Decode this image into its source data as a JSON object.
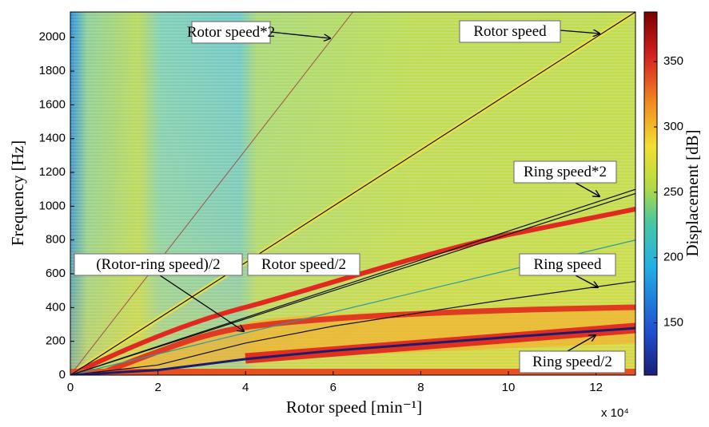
{
  "chart_data": {
    "type": "line",
    "x_label": "Rotor speed [min⁻¹]",
    "x_scale_label": "x 10⁴",
    "y_label": "Frequency [Hz]",
    "xlim": [
      0,
      12.9
    ],
    "xticks": [
      0,
      2,
      4,
      6,
      8,
      10,
      12
    ],
    "ylim": [
      0,
      2150
    ],
    "yticks": [
      0,
      200,
      400,
      600,
      800,
      1000,
      1200,
      1400,
      1600,
      1800,
      2000
    ],
    "colorbar": {
      "label": "Displacement [dB]",
      "clim": [
        110,
        388
      ],
      "ticks": [
        150,
        200,
        250,
        300,
        350
      ]
    },
    "series": [
      {
        "name": "Rotor speed*2",
        "color": "#a0524a",
        "x": [
          0,
          6.45
        ],
        "values": [
          0,
          2150
        ]
      },
      {
        "name": "Rotor speed",
        "color": "#111111",
        "x": [
          0,
          12.9
        ],
        "values": [
          0,
          2150
        ]
      },
      {
        "name": "Ring speed*2",
        "color": "#111111",
        "x": [
          0,
          12.9
        ],
        "values": [
          0,
          1100
        ]
      },
      {
        "name": "(Rotor-ring speed)/2",
        "color": "#2a9a9a",
        "x": [
          0,
          4,
          12.9
        ],
        "values": [
          0,
          250,
          800
        ]
      },
      {
        "name": "Rotor speed/2",
        "color": "#111111",
        "x": [
          0,
          12.9
        ],
        "values": [
          0,
          1075
        ]
      },
      {
        "name": "Ring speed",
        "color": "#111111",
        "x": [
          0,
          2,
          4,
          6,
          8,
          10,
          12.9
        ],
        "values": [
          0,
          60,
          190,
          290,
          370,
          450,
          555
        ]
      },
      {
        "name": "Ring speed/2",
        "color": "#1c1c6a",
        "x": [
          0,
          2,
          4,
          6,
          8,
          10,
          12.9
        ],
        "values": [
          0,
          30,
          95,
          145,
          185,
          225,
          278
        ]
      }
    ]
  }
}
